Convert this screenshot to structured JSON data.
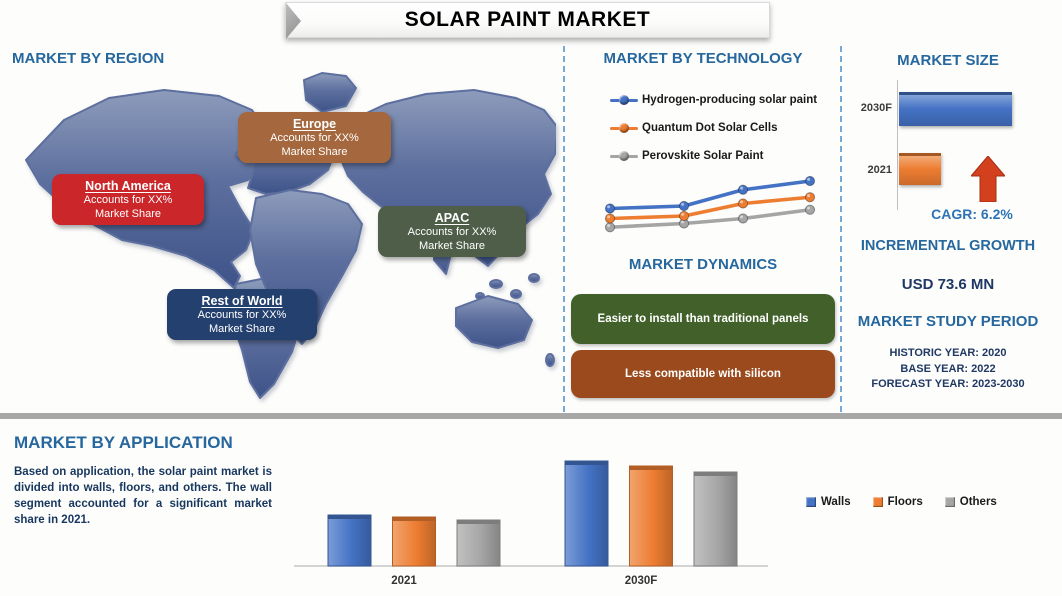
{
  "title": "SOLAR PAINT MARKET",
  "colors": {
    "heading": "#26679e",
    "navy": "#1f3864",
    "divider": "#74a9d8",
    "separator": "#a8a8a8"
  },
  "region": {
    "heading": "MARKET BY REGION",
    "map_icon": "world-map",
    "callouts": [
      {
        "name": "North America",
        "line1": "Accounts for XX%",
        "line2": "Market Share",
        "color": "#cb2629"
      },
      {
        "name": "Europe",
        "line1": "Accounts for XX%",
        "line2": "Market Share",
        "color": "#a5683e"
      },
      {
        "name": "APAC",
        "line1": "Accounts for XX%",
        "line2": "Market Share",
        "color": "#4e5e48"
      },
      {
        "name": "Rest of World",
        "line1": "Accounts for XX%",
        "line2": "Market Share",
        "color": "#24406e"
      }
    ]
  },
  "technology": {
    "heading": "MARKET BY TECHNOLOGY",
    "legend": [
      {
        "label": "Hydrogen-producing solar paint",
        "color": "#4472c4"
      },
      {
        "label": "Quantum Dot Solar Cells",
        "color": "#ed7d31"
      },
      {
        "label": "Perovskite Solar Paint",
        "color": "#a5a5a5"
      }
    ]
  },
  "dynamics": {
    "heading": "MARKET DYNAMICS",
    "items": [
      {
        "text": "Easier to install than traditional panels",
        "color": "#42612a"
      },
      {
        "text": "Less compatible with silicon",
        "color": "#9a4a1c"
      }
    ]
  },
  "market_size": {
    "heading": "MARKET SIZE",
    "cagr_label": "CAGR: 6.2%",
    "arrow_color": "#d2401d",
    "bars": [
      {
        "label": "2030F",
        "color": "#4472c4"
      },
      {
        "label": "2021",
        "color": "#ed7d31"
      }
    ]
  },
  "incremental_growth": {
    "heading": "INCREMENTAL GROWTH",
    "value": "USD 73.6 MN"
  },
  "study_period": {
    "heading": "MARKET STUDY PERIOD",
    "historic": "HISTORIC YEAR: 2020",
    "base": "BASE YEAR: 2022",
    "forecast": "FORECAST YEAR: 2023-2030"
  },
  "application": {
    "heading": "MARKET BY APPLICATION",
    "description": "Based on application, the solar paint market is divided into walls, floors, and others. The wall segment accounted for a significant market share in 2021.",
    "legend": [
      {
        "label": "Walls",
        "color": "#4472c4"
      },
      {
        "label": "Floors",
        "color": "#ed7d31"
      },
      {
        "label": "Others",
        "color": "#a6a6a6"
      }
    ]
  },
  "chart_data": [
    {
      "id": "technology-trend",
      "type": "line",
      "title": "MARKET BY TECHNOLOGY",
      "x": [
        1,
        2,
        3,
        4
      ],
      "series": [
        {
          "name": "Hydrogen-producing solar paint",
          "color": "#4472c4",
          "values": [
            30,
            32,
            45,
            52
          ]
        },
        {
          "name": "Quantum Dot Solar Cells",
          "color": "#ed7d31",
          "values": [
            22,
            24,
            34,
            39
          ]
        },
        {
          "name": "Perovskite Solar Paint",
          "color": "#a5a5a5",
          "values": [
            15,
            18,
            22,
            29
          ]
        }
      ],
      "ylim": [
        0,
        60
      ],
      "legend_position": "above",
      "grid": false,
      "note": "No axes or tick labels shown; values are relative estimates from pixel positions"
    },
    {
      "id": "market-size",
      "type": "bar",
      "title": "MARKET SIZE",
      "orientation": "horizontal",
      "categories": [
        "2030F",
        "2021"
      ],
      "values": [
        100,
        37
      ],
      "colors": [
        "#4472c4",
        "#ed7d31"
      ],
      "annotation": "CAGR: 6.2%",
      "grid": false,
      "note": "No value axis shown; values are relative estimates"
    },
    {
      "id": "application-share",
      "type": "bar",
      "title": "MARKET BY APPLICATION",
      "categories": [
        "2021",
        "2030F"
      ],
      "series": [
        {
          "name": "Walls",
          "color": "#4472c4",
          "values": [
            51,
            105
          ]
        },
        {
          "name": "Floors",
          "color": "#ed7d31",
          "values": [
            49,
            100
          ]
        },
        {
          "name": "Others",
          "color": "#a6a6a6",
          "values": [
            46,
            94
          ]
        }
      ],
      "ylim": [
        0,
        120
      ],
      "legend_position": "right",
      "grid": false,
      "note": "No y-axis shown; values are relative estimates from bar heights"
    }
  ]
}
